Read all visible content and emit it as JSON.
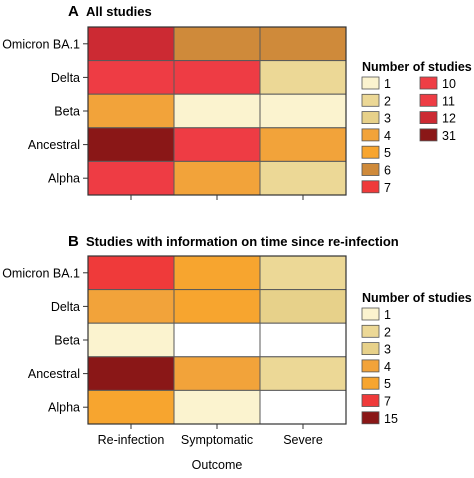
{
  "chart_data": [
    {
      "type": "heatmap",
      "panel": "A",
      "title": "All studies",
      "rows": [
        "Omicron BA.1",
        "Delta",
        "Beta",
        "Ancestral",
        "Alpha"
      ],
      "columns": [
        "Re-infection",
        "Symptomatic",
        "Severe"
      ],
      "values": [
        [
          12,
          6,
          6
        ],
        [
          11,
          11,
          2
        ],
        [
          4,
          1,
          1
        ],
        [
          31,
          11,
          4
        ],
        [
          11,
          4,
          2
        ]
      ],
      "legend": {
        "title": "Number of studies",
        "items": [
          {
            "label": "1",
            "color": "#fbf3cf"
          },
          {
            "label": "2",
            "color": "#ecd896"
          },
          {
            "label": "3",
            "color": "#e7d18a"
          },
          {
            "label": "4",
            "color": "#f2a33a"
          },
          {
            "label": "5",
            "color": "#f7a52f"
          },
          {
            "label": "6",
            "color": "#cf8a3a"
          },
          {
            "label": "7",
            "color": "#ef3a3a"
          },
          {
            "label": "10",
            "color": "#ef3e45"
          },
          {
            "label": "11",
            "color": "#ee3c44"
          },
          {
            "label": "12",
            "color": "#cc2a33"
          },
          {
            "label": "31",
            "color": "#8a1717"
          }
        ]
      }
    },
    {
      "type": "heatmap",
      "panel": "B",
      "title": "Studies with information on time since re-infection",
      "rows": [
        "Omicron BA.1",
        "Delta",
        "Beta",
        "Ancestral",
        "Alpha"
      ],
      "columns": [
        "Re-infection",
        "Symptomatic",
        "Severe"
      ],
      "values": [
        [
          7,
          5,
          2
        ],
        [
          4,
          5,
          3
        ],
        [
          1,
          null,
          null
        ],
        [
          15,
          4,
          2
        ],
        [
          5,
          1,
          null
        ]
      ],
      "xlabel": "Outcome",
      "legend": {
        "title": "Number of studies",
        "items": [
          {
            "label": "1",
            "color": "#fbf3cf"
          },
          {
            "label": "2",
            "color": "#ecd896"
          },
          {
            "label": "3",
            "color": "#e7d18a"
          },
          {
            "label": "4",
            "color": "#f2a33a"
          },
          {
            "label": "5",
            "color": "#f7a52f"
          },
          {
            "label": "7",
            "color": "#ef3a3a"
          },
          {
            "label": "15",
            "color": "#8a1717"
          }
        ]
      }
    }
  ]
}
